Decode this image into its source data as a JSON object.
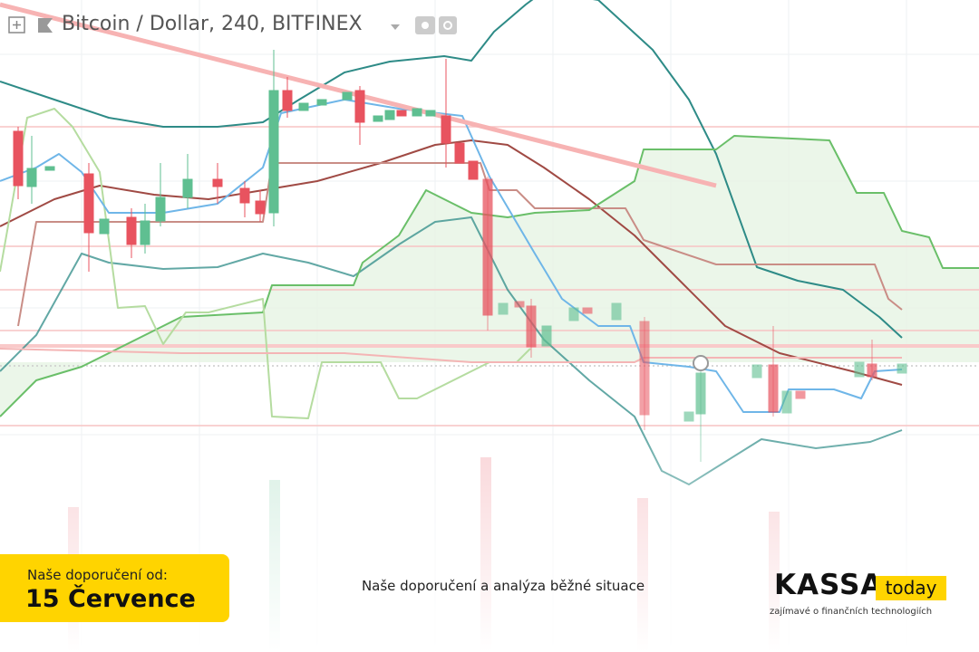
{
  "header": {
    "title": "Bitcoin / Dollar, 240, BITFINEX"
  },
  "badge": {
    "label": "Naše doporučení od:",
    "date": "15 Července"
  },
  "caption": "Naše doporučení a analýza běžné situace",
  "logo": {
    "name": "KASSA",
    "tag": "today",
    "subtitle": "zajímavé o finančních technologiích"
  }
}
